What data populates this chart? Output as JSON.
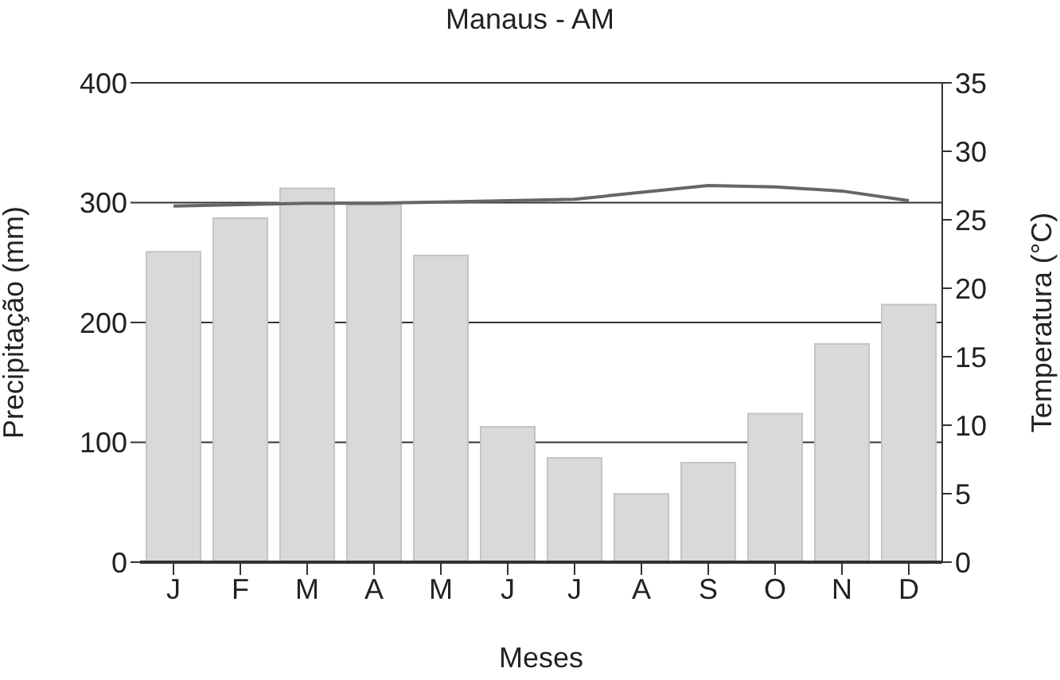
{
  "chart_data": {
    "type": "bar",
    "title": "Manaus - AM",
    "xlabel": "Meses",
    "ylabel": "Precipitação (mm)",
    "y2label": "Temperatura (°C)",
    "categories": [
      "J",
      "F",
      "M",
      "A",
      "M",
      "J",
      "J",
      "A",
      "S",
      "O",
      "N",
      "D"
    ],
    "series": [
      {
        "color": "#d9d9d9",
        "values": [
          259,
          287,
          312,
          298,
          256,
          113,
          87,
          57,
          83,
          124,
          182,
          215
        ]
      },
      {
        "type": "line",
        "axis": "y2",
        "color": "#666666",
        "values": [
          26.0,
          26.1,
          26.2,
          26.2,
          26.3,
          26.4,
          26.5,
          27.0,
          27.5,
          27.4,
          27.1,
          26.4
        ]
      }
    ],
    "ylim": [
      0,
      400
    ],
    "yticks": [
      0,
      100,
      200,
      300,
      400
    ],
    "y2lim": [
      0,
      35
    ],
    "y2ticks": [
      0,
      5,
      10,
      15,
      20,
      25,
      30,
      35
    ],
    "grid": "y",
    "legend": false,
    "marker": "none",
    "line_style": "solid"
  }
}
